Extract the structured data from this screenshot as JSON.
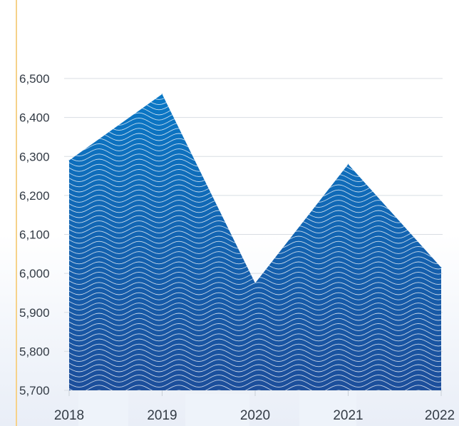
{
  "chart_data": {
    "type": "area",
    "title": "",
    "xlabel": "",
    "ylabel": "",
    "x": [
      "2018",
      "2019",
      "2020",
      "2021",
      "2022"
    ],
    "series": [
      {
        "values": [
          6290,
          6460,
          5975,
          6280,
          6015
        ]
      }
    ],
    "ylim": [
      5700,
      6500
    ],
    "yticks": [
      "5,700",
      "5,800",
      "5,900",
      "6,000",
      "6,100",
      "6,200",
      "6,300",
      "6,400",
      "6,500"
    ],
    "yticks_values": [
      5700,
      5800,
      5900,
      6000,
      6100,
      6200,
      6300,
      6400,
      6500
    ],
    "grid": true,
    "legend": "none",
    "colors": {
      "area_top": "#0a78c6",
      "area_bottom": "#1c4e9b",
      "wave_lines": "#ffffff",
      "grid": "#d8dde3",
      "accent": "#f6d28a"
    }
  }
}
